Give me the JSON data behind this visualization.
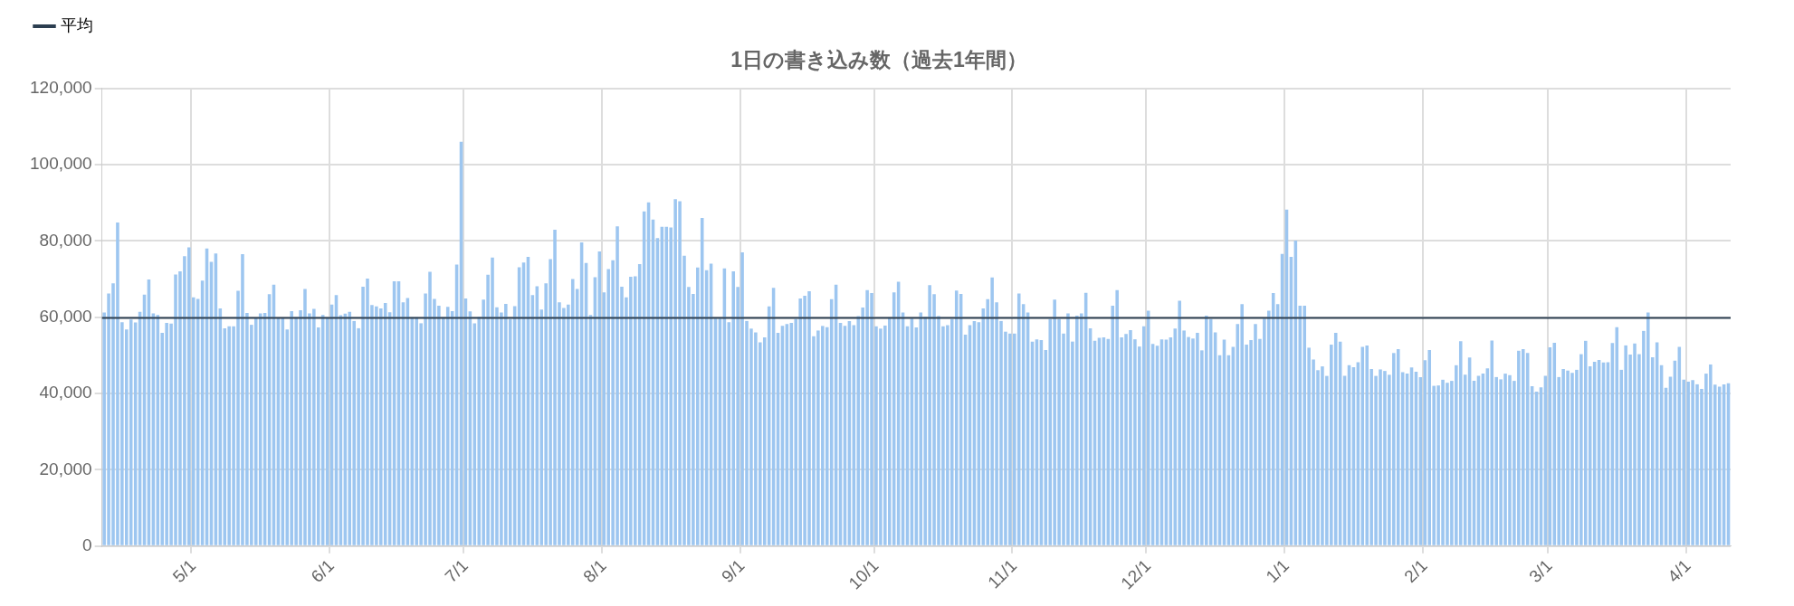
{
  "chart_data": {
    "type": "bar",
    "title": "1日の書き込み数（過去1年間）",
    "categories": [
      null,
      null,
      null,
      null,
      null,
      null,
      null,
      null,
      null,
      null,
      null,
      null,
      null,
      null,
      null,
      null,
      null,
      null,
      null,
      null,
      "5/1",
      null,
      null,
      null,
      null,
      null,
      null,
      null,
      null,
      null,
      null,
      null,
      null,
      null,
      null,
      null,
      null,
      null,
      null,
      null,
      null,
      null,
      null,
      null,
      null,
      null,
      null,
      null,
      null,
      null,
      null,
      "6/1",
      null,
      null,
      null,
      null,
      null,
      null,
      null,
      null,
      null,
      null,
      null,
      null,
      null,
      null,
      null,
      null,
      null,
      null,
      null,
      null,
      null,
      null,
      null,
      null,
      null,
      null,
      null,
      null,
      null,
      "7/1",
      null,
      null,
      null,
      null,
      null,
      null,
      null,
      null,
      null,
      null,
      null,
      null,
      null,
      null,
      null,
      null,
      null,
      null,
      null,
      null,
      null,
      null,
      null,
      null,
      null,
      null,
      null,
      null,
      null,
      null,
      "8/1",
      null,
      null,
      null,
      null,
      null,
      null,
      null,
      null,
      null,
      null,
      null,
      null,
      null,
      null,
      null,
      null,
      null,
      null,
      null,
      null,
      null,
      null,
      null,
      null,
      null,
      null,
      null,
      null,
      null,
      null,
      "9/1",
      null,
      null,
      null,
      null,
      null,
      null,
      null,
      null,
      null,
      null,
      null,
      null,
      null,
      null,
      null,
      null,
      null,
      null,
      null,
      null,
      null,
      null,
      null,
      null,
      null,
      null,
      null,
      null,
      null,
      "10/1",
      null,
      null,
      null,
      null,
      null,
      null,
      null,
      null,
      null,
      null,
      null,
      null,
      null,
      null,
      null,
      null,
      null,
      null,
      null,
      null,
      null,
      null,
      null,
      null,
      null,
      null,
      null,
      null,
      null,
      null,
      "11/1",
      null,
      null,
      null,
      null,
      null,
      null,
      null,
      null,
      null,
      null,
      null,
      null,
      null,
      null,
      null,
      null,
      null,
      null,
      null,
      null,
      null,
      null,
      null,
      null,
      null,
      null,
      null,
      null,
      null,
      "12/1",
      null,
      null,
      null,
      null,
      null,
      null,
      null,
      null,
      null,
      null,
      null,
      null,
      null,
      null,
      null,
      null,
      null,
      null,
      null,
      null,
      null,
      null,
      null,
      null,
      null,
      null,
      null,
      null,
      null,
      null,
      "1/1",
      null,
      null,
      null,
      null,
      null,
      null,
      null,
      null,
      null,
      null,
      null,
      null,
      null,
      null,
      null,
      null,
      null,
      null,
      null,
      null,
      null,
      null,
      null,
      null,
      null,
      null,
      null,
      null,
      null,
      null,
      "2/1",
      null,
      null,
      null,
      null,
      null,
      null,
      null,
      null,
      null,
      null,
      null,
      null,
      null,
      null,
      null,
      null,
      null,
      null,
      null,
      null,
      null,
      null,
      null,
      null,
      null,
      null,
      null,
      "3/1",
      null,
      null,
      null,
      null,
      null,
      null,
      null,
      null,
      null,
      null,
      null,
      null,
      null,
      null,
      null,
      null,
      null,
      null,
      null,
      null,
      null,
      null,
      null,
      null,
      null,
      null,
      null,
      null,
      null,
      null,
      "4/1",
      null,
      null,
      null,
      null,
      null,
      null,
      null,
      null,
      null
    ],
    "values": [
      61200,
      66200,
      68900,
      84800,
      58700,
      56800,
      59400,
      58600,
      61400,
      65900,
      69900,
      61000,
      60600,
      55900,
      58500,
      58300,
      71200,
      72000,
      76000,
      78300,
      65200,
      64800,
      69600,
      78000,
      74500,
      76700,
      62300,
      57100,
      57600,
      57600,
      66900,
      76500,
      61100,
      58000,
      59800,
      61000,
      61100,
      66000,
      68500,
      59800,
      59800,
      56800,
      61600,
      60000,
      61800,
      67400,
      61000,
      62200,
      57300,
      60600,
      59800,
      63300,
      65800,
      60500,
      60900,
      61400,
      59000,
      57100,
      68000,
      70100,
      63200,
      62800,
      62300,
      63700,
      61300,
      69400,
      69400,
      63900,
      65000,
      60000,
      60000,
      58400,
      66200,
      71900,
      64800,
      63000,
      60000,
      62700,
      61600,
      73800,
      106000,
      64900,
      61500,
      58400,
      60100,
      64600,
      71100,
      75600,
      62600,
      61200,
      63500,
      59500,
      62900,
      73100,
      74300,
      75800,
      65800,
      68100,
      62000,
      68900,
      75200,
      82900,
      63900,
      62400,
      63300,
      70000,
      67400,
      79600,
      74200,
      60600,
      70500,
      77200,
      66500,
      72600,
      74900,
      83800,
      68000,
      65200,
      70600,
      70700,
      73900,
      87700,
      90100,
      85600,
      80700,
      83700,
      83700,
      83500,
      90900,
      90400,
      76100,
      67900,
      66100,
      73000,
      86000,
      72300,
      74000,
      59600,
      59600,
      72800,
      58700,
      72000,
      67900,
      77000,
      59000,
      57000,
      56000,
      53400,
      54700,
      62800,
      67700,
      55900,
      57700,
      58200,
      58500,
      59500,
      64900,
      65600,
      66800,
      55000,
      56500,
      57700,
      57400,
      64700,
      68500,
      58500,
      57700,
      59000,
      57900,
      60300,
      62500,
      67100,
      66300,
      57600,
      57000,
      57800,
      60000,
      66500,
      69300,
      61200,
      57600,
      59600,
      57300,
      61200,
      60100,
      68400,
      66000,
      60300,
      57600,
      57900,
      59500,
      67000,
      66100,
      55400,
      57900,
      59000,
      58700,
      62300,
      64700,
      70400,
      63900,
      59000,
      56200,
      55700,
      55700,
      66200,
      63400,
      61200,
      53600,
      54200,
      54000,
      51400,
      59500,
      64600,
      59500,
      55700,
      61000,
      53600,
      60400,
      61000,
      66400,
      57100,
      53800,
      54600,
      54700,
      54300,
      63000,
      67100,
      54700,
      55600,
      56600,
      54200,
      52300,
      57600,
      61700,
      53000,
      52500,
      54200,
      54100,
      54700,
      57000,
      64300,
      56500,
      54800,
      54400,
      55900,
      51300,
      60400,
      59500,
      56000,
      50000,
      54100,
      50000,
      52200,
      58200,
      63400,
      52800,
      54000,
      58200,
      54300,
      59600,
      61700,
      66300,
      63400,
      76600,
      88200,
      75800,
      80100,
      63000,
      63000,
      52000,
      48900,
      46100,
      47100,
      44600,
      52800,
      55900,
      53600,
      44600,
      47400,
      46900,
      48200,
      52200,
      52600,
      46400,
      44600,
      46300,
      45900,
      44900,
      50600,
      51600,
      45600,
      45200,
      46800,
      45700,
      44300,
      48700,
      51400,
      42000,
      42100,
      43600,
      42800,
      43300,
      47400,
      53700,
      44900,
      49400,
      43300,
      44600,
      45200,
      46600,
      53900,
      44300,
      43700,
      45200,
      44800,
      43300,
      51200,
      51600,
      50600,
      41900,
      40500,
      41600,
      44600,
      52100,
      53300,
      44300,
      46400,
      46000,
      45400,
      46200,
      50300,
      53800,
      47100,
      48300,
      48800,
      48100,
      48200,
      53200,
      57400,
      46200,
      52600,
      50200,
      53100,
      50300,
      56400,
      61200,
      49500,
      53400,
      47400,
      41500,
      44400,
      48600,
      52200,
      43600,
      43100,
      43500,
      42400,
      41200,
      45200,
      47600,
      42300,
      41800,
      42400,
      42700
    ],
    "color": "#9dc6f0",
    "ylim": [
      0,
      120000
    ],
    "yticks": [
      {
        "value": 0,
        "label": "0"
      },
      {
        "value": 20000,
        "label": "20,000"
      },
      {
        "value": 40000,
        "label": "40,000"
      },
      {
        "value": 60000,
        "label": "60,000"
      },
      {
        "value": 80000,
        "label": "80,000"
      },
      {
        "value": 100000,
        "label": "100,000"
      },
      {
        "value": 120000,
        "label": "120,000"
      }
    ],
    "ref_lines": [
      {
        "axis": "y",
        "value": 59800,
        "label": "平均",
        "color": "#2c3e50"
      }
    ],
    "grid": true,
    "legend": "top left"
  }
}
